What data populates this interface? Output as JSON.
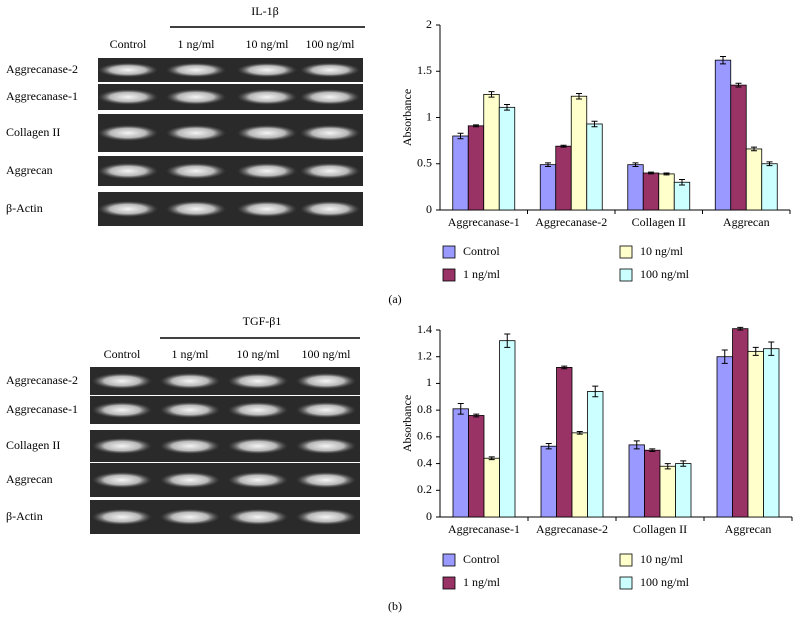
{
  "panel_labels": [
    "(a)",
    "(b)"
  ],
  "blots": [
    {
      "treatment": "IL-1β",
      "columns": [
        "Control",
        "1 ng/ml",
        "10 ng/ml",
        "100 ng/ml"
      ],
      "rows": [
        "Aggrecanase-2",
        "Aggrecanase-1",
        "Collagen II",
        "Aggrecan",
        "β-Actin"
      ]
    },
    {
      "treatment": "TGF-β1",
      "columns": [
        "Control",
        "1 ng/ml",
        "10 ng/ml",
        "100 ng/ml"
      ],
      "rows": [
        "Aggrecanase-2",
        "Aggrecanase-1",
        "Collagen II",
        "Aggrecan",
        "β-Actin"
      ]
    }
  ],
  "chart_data": [
    {
      "type": "bar",
      "y_label": "Absorbance",
      "categories": [
        "Aggrecanase-1",
        "Aggrecanase-2",
        "Collagen II",
        "Aggrecan"
      ],
      "ylim": [
        0,
        2
      ],
      "yticks": [
        0,
        0.5,
        1,
        1.5,
        2
      ],
      "series": [
        {
          "name": "Control",
          "color": "#9999ff",
          "values": [
            0.8,
            0.49,
            0.49,
            1.62
          ],
          "errors": [
            0.03,
            0.02,
            0.02,
            0.04
          ]
        },
        {
          "name": "1 ng/ml",
          "color": "#993366",
          "values": [
            0.91,
            0.69,
            0.4,
            1.35
          ],
          "errors": [
            0.01,
            0.01,
            0.01,
            0.02
          ]
        },
        {
          "name": "10 ng/ml",
          "color": "#ffffcc",
          "values": [
            1.25,
            1.23,
            0.39,
            0.66
          ],
          "errors": [
            0.03,
            0.03,
            0.01,
            0.02
          ]
        },
        {
          "name": "100 ng/ml",
          "color": "#ccffff",
          "values": [
            1.11,
            0.93,
            0.3,
            0.5
          ],
          "errors": [
            0.03,
            0.03,
            0.03,
            0.02
          ]
        }
      ]
    },
    {
      "type": "bar",
      "y_label": "Absorbance",
      "categories": [
        "Aggrecanase-1",
        "Aggrecanase-2",
        "Collagen II",
        "Aggrecan"
      ],
      "ylim": [
        0,
        1.4
      ],
      "yticks": [
        0,
        0.2,
        0.4,
        0.6,
        0.8,
        1,
        1.2,
        1.4
      ],
      "series": [
        {
          "name": "Control",
          "color": "#9999ff",
          "values": [
            0.81,
            0.53,
            0.54,
            1.2
          ],
          "errors": [
            0.04,
            0.02,
            0.03,
            0.05
          ]
        },
        {
          "name": "1 ng/ml",
          "color": "#993366",
          "values": [
            0.76,
            1.12,
            0.5,
            1.41
          ],
          "errors": [
            0.01,
            0.01,
            0.01,
            0.01
          ]
        },
        {
          "name": "10 ng/ml",
          "color": "#ffffcc",
          "values": [
            0.44,
            0.63,
            0.38,
            1.24
          ],
          "errors": [
            0.01,
            0.01,
            0.02,
            0.03
          ]
        },
        {
          "name": "100 ng/ml",
          "color": "#ccffff",
          "values": [
            1.32,
            0.94,
            0.4,
            1.26
          ],
          "errors": [
            0.05,
            0.04,
            0.02,
            0.05
          ]
        }
      ]
    }
  ]
}
